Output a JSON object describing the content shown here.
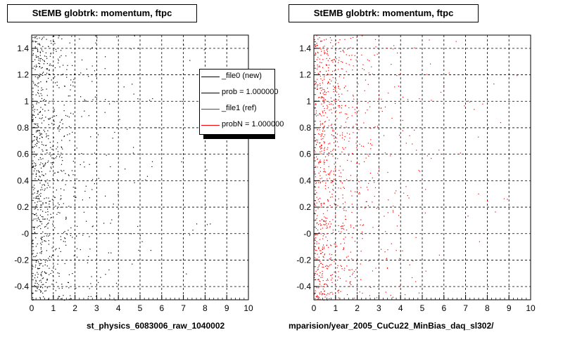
{
  "colors": {
    "new": "#000000",
    "ref": "#ff0000"
  },
  "footer_text": "",
  "chart_data": [
    {
      "type": "scatter",
      "title": "StEMB globtrk: momentum, ftpc",
      "xlabel": "st_physics_6083006_raw_1040002",
      "ylabel": "",
      "xlim": [
        0,
        10
      ],
      "ylim": [
        -0.5,
        1.5
      ],
      "xticks": [
        0,
        1,
        2,
        3,
        4,
        5,
        6,
        7,
        8,
        9,
        10
      ],
      "yticks": [
        -0.4,
        -0.2,
        0,
        0.2,
        0.4,
        0.6,
        0.8,
        1,
        1.2,
        1.4
      ],
      "ytick_labels": [
        "-0.4",
        "-0.2",
        "-0",
        "0.2",
        "0.4",
        "0.6",
        "0.8",
        "1",
        "1.2",
        "1.4"
      ],
      "grid": true,
      "series": [
        {
          "name": "_file0 (new)",
          "color": "#000000",
          "density_profile": {
            "x_bins": [
              0,
              0.5,
              1,
              1.5,
              2,
              3,
              4,
              5,
              6,
              8,
              10
            ],
            "relative_density": [
              1.0,
              0.55,
              0.32,
              0.18,
              0.09,
              0.045,
              0.025,
              0.012,
              0.006,
              0.003
            ]
          },
          "seed": 11
        }
      ],
      "legend": {
        "placement": "top-right",
        "entries": [
          {
            "label": "_file0 (new)",
            "color": "#000000"
          },
          {
            "label": "prob = 1.000000",
            "color": "#000000"
          },
          {
            "label": "_file1 (ref)",
            "color": "#ff0000"
          },
          {
            "label": "probN = 1.000000",
            "color": "#ff0000"
          }
        ]
      }
    },
    {
      "type": "scatter",
      "title": "StEMB globtrk: momentum, ftpc",
      "xlabel": "mparision/year_2005_CuCu22_MinBias_daq_sl302/",
      "ylabel": "",
      "xlim": [
        0,
        10
      ],
      "ylim": [
        -0.5,
        1.5
      ],
      "xticks": [
        0,
        1,
        2,
        3,
        4,
        5,
        6,
        7,
        8,
        9,
        10
      ],
      "yticks": [
        -0.4,
        -0.2,
        0,
        0.2,
        0.4,
        0.6,
        0.8,
        1,
        1.2,
        1.4
      ],
      "ytick_labels": [
        "-0.4",
        "-0.2",
        "-0",
        "0.2",
        "0.4",
        "0.6",
        "0.8",
        "1",
        "1.2",
        "1.4"
      ],
      "grid": true,
      "series": [
        {
          "name": "_file1 (ref)",
          "color": "#ff0000",
          "density_profile": {
            "x_bins": [
              0,
              0.5,
              1,
              1.5,
              2,
              3,
              4,
              5,
              6,
              8,
              10
            ],
            "relative_density": [
              1.0,
              0.6,
              0.38,
              0.22,
              0.12,
              0.065,
              0.035,
              0.018,
              0.009,
              0.004
            ]
          },
          "seed": 29
        }
      ]
    }
  ]
}
